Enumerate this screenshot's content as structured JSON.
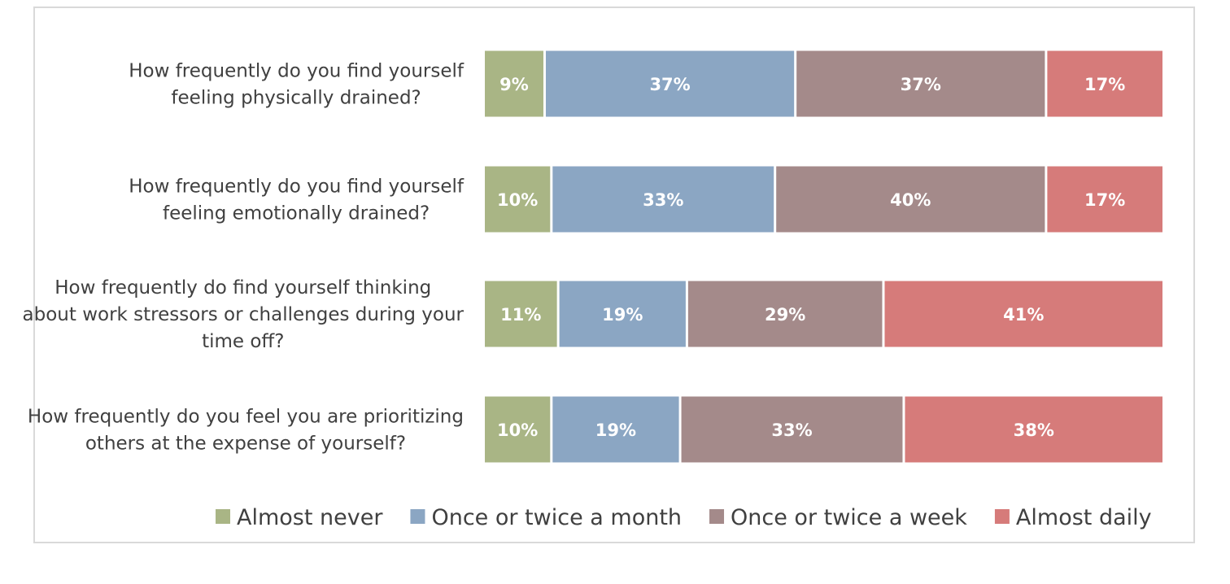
{
  "chart_data": {
    "type": "bar",
    "orientation": "horizontal",
    "stacked": "100%",
    "categories": [
      [
        "How frequently do you find yourself",
        "feeling physically drained?"
      ],
      [
        "How frequently do you find yourself",
        "feeling emotionally drained?"
      ],
      [
        "How frequently do find yourself thinking",
        "about work stressors or challenges during your",
        "time off?"
      ],
      [
        "How frequently do you feel you are prioritizing",
        "others at the expense of yourself?"
      ]
    ],
    "series": [
      {
        "name": "Almost never",
        "color": "#a9b585",
        "values": [
          9,
          10,
          11,
          10
        ]
      },
      {
        "name": "Once or twice a month",
        "color": "#8ba6c3",
        "values": [
          37,
          33,
          19,
          19
        ]
      },
      {
        "name": "Once or twice a week",
        "color": "#a48a8a",
        "values": [
          37,
          40,
          29,
          33
        ]
      },
      {
        "name": "Almost daily",
        "color": "#d67b7a",
        "values": [
          17,
          17,
          41,
          38
        ]
      }
    ],
    "value_suffix": "%",
    "grid": false,
    "legend_position": "bottom"
  }
}
